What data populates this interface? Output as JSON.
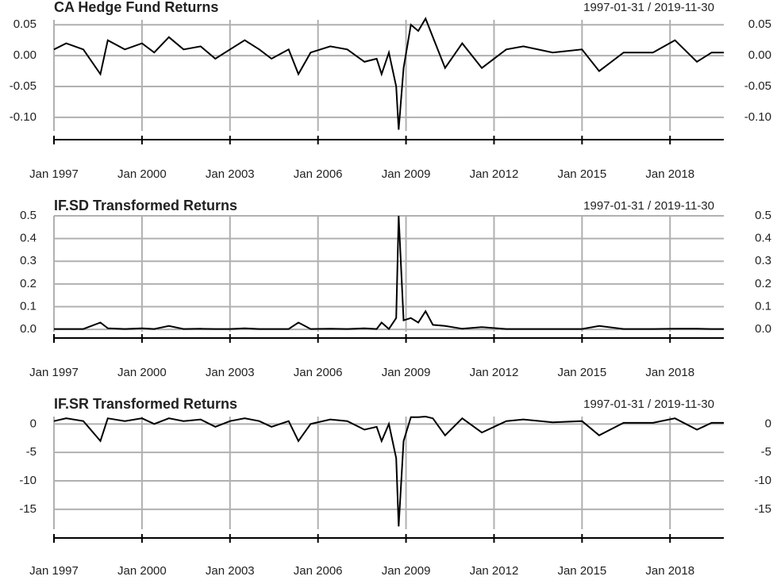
{
  "chart_data": [
    {
      "type": "line",
      "title": "CA Hedge Fund Returns",
      "period": "1997-01-31 / 2019-11-30",
      "x": [
        "1997-01",
        "1997-06",
        "1998-01",
        "1998-08",
        "1998-11",
        "1999-06",
        "2000-01",
        "2000-06",
        "2000-12",
        "2001-06",
        "2002-01",
        "2002-07",
        "2003-01",
        "2003-07",
        "2004-01",
        "2004-06",
        "2005-01",
        "2005-05",
        "2005-10",
        "2006-06",
        "2007-01",
        "2007-08",
        "2008-01",
        "2008-03",
        "2008-06",
        "2008-09",
        "2008-10",
        "2008-12",
        "2009-03",
        "2009-06",
        "2009-09",
        "2009-12",
        "2010-05",
        "2010-12",
        "2011-08",
        "2012-06",
        "2013-01",
        "2014-01",
        "2015-01",
        "2015-08",
        "2016-06",
        "2017-06",
        "2018-03",
        "2018-12",
        "2019-06",
        "2019-11"
      ],
      "series": [
        {
          "name": "CA Hedge Fund",
          "color": "#000000",
          "values": [
            0.01,
            0.02,
            0.01,
            -0.03,
            0.025,
            0.01,
            0.02,
            0.005,
            0.03,
            0.01,
            0.015,
            -0.005,
            0.01,
            0.025,
            0.01,
            -0.005,
            0.01,
            -0.03,
            0.005,
            0.015,
            0.01,
            -0.01,
            -0.005,
            -0.03,
            0.005,
            -0.05,
            -0.12,
            -0.02,
            0.05,
            0.04,
            0.06,
            0.03,
            -0.02,
            0.02,
            -0.02,
            0.01,
            0.015,
            0.005,
            0.01,
            -0.025,
            0.005,
            0.005,
            0.025,
            -0.01,
            0.005,
            0.005
          ]
        }
      ],
      "xlim": [
        "1997-01",
        "2019-11"
      ],
      "xticks": [
        {
          "value": "1997-01",
          "label": "Jan 1997"
        },
        {
          "value": "2000-01",
          "label": "Jan 2000"
        },
        {
          "value": "2003-01",
          "label": "Jan 2003"
        },
        {
          "value": "2006-01",
          "label": "Jan 2006"
        },
        {
          "value": "2009-01",
          "label": "Jan 2009"
        },
        {
          "value": "2012-01",
          "label": "Jan 2012"
        },
        {
          "value": "2015-01",
          "label": "Jan 2015"
        },
        {
          "value": "2018-01",
          "label": "Jan 2018"
        }
      ],
      "ylim": [
        -0.122,
        0.058
      ],
      "yticks": [
        {
          "value": 0.05,
          "label": "0.05"
        },
        {
          "value": 0,
          "label": "0.00"
        },
        {
          "value": -0.05,
          "label": "-0.05"
        },
        {
          "value": -0.1,
          "label": "-0.10"
        }
      ],
      "grid": true
    },
    {
      "type": "line",
      "title": "IF.SD Transformed Returns",
      "period": "1997-01-31 / 2019-11-30",
      "x": [
        "1997-01",
        "1997-06",
        "1998-01",
        "1998-08",
        "1998-11",
        "1999-06",
        "2000-01",
        "2000-06",
        "2000-12",
        "2001-06",
        "2002-01",
        "2002-07",
        "2003-01",
        "2003-07",
        "2004-01",
        "2004-06",
        "2005-01",
        "2005-05",
        "2005-10",
        "2006-06",
        "2007-01",
        "2007-08",
        "2008-01",
        "2008-03",
        "2008-06",
        "2008-09",
        "2008-10",
        "2008-12",
        "2009-03",
        "2009-06",
        "2009-09",
        "2009-12",
        "2010-05",
        "2010-12",
        "2011-08",
        "2012-06",
        "2013-01",
        "2014-01",
        "2015-01",
        "2015-08",
        "2016-06",
        "2017-06",
        "2018-03",
        "2018-12",
        "2019-06",
        "2019-11"
      ],
      "series": [
        {
          "name": "IF.SD",
          "color": "#000000",
          "values": [
            0.002,
            0.002,
            0.002,
            0.03,
            0.005,
            0.002,
            0.005,
            0.002,
            0.015,
            0.002,
            0.003,
            0.002,
            0.002,
            0.005,
            0.002,
            0.002,
            0.002,
            0.03,
            0.002,
            0.003,
            0.002,
            0.005,
            0.002,
            0.03,
            0.002,
            0.05,
            0.5,
            0.04,
            0.05,
            0.03,
            0.08,
            0.02,
            0.015,
            0.003,
            0.01,
            0.002,
            0.002,
            0.002,
            0.002,
            0.015,
            0.002,
            0.002,
            0.003,
            0.003,
            0.002,
            0.002
          ]
        }
      ],
      "xlim": [
        "1997-01",
        "2019-11"
      ],
      "xticks": [
        {
          "value": "1997-01",
          "label": "Jan 1997"
        },
        {
          "value": "2000-01",
          "label": "Jan 2000"
        },
        {
          "value": "2003-01",
          "label": "Jan 2003"
        },
        {
          "value": "2006-01",
          "label": "Jan 2006"
        },
        {
          "value": "2009-01",
          "label": "Jan 2009"
        },
        {
          "value": "2012-01",
          "label": "Jan 2012"
        },
        {
          "value": "2015-01",
          "label": "Jan 2015"
        },
        {
          "value": "2018-01",
          "label": "Jan 2018"
        }
      ],
      "ylim": [
        -0.01,
        0.5
      ],
      "yticks": [
        0.5,
        0.4,
        0.3,
        0.2,
        0.1,
        {
          "value": 0,
          "label": "0.0"
        }
      ],
      "grid": true
    },
    {
      "type": "line",
      "title": "IF.SR Transformed Returns",
      "period": "1997-01-31 / 2019-11-30",
      "x": [
        "1997-01",
        "1997-06",
        "1998-01",
        "1998-08",
        "1998-11",
        "1999-06",
        "2000-01",
        "2000-06",
        "2000-12",
        "2001-06",
        "2002-01",
        "2002-07",
        "2003-01",
        "2003-07",
        "2004-01",
        "2004-06",
        "2005-01",
        "2005-05",
        "2005-10",
        "2006-06",
        "2007-01",
        "2007-08",
        "2008-01",
        "2008-03",
        "2008-06",
        "2008-09",
        "2008-10",
        "2008-12",
        "2009-03",
        "2009-06",
        "2009-09",
        "2009-12",
        "2010-05",
        "2010-12",
        "2011-08",
        "2012-06",
        "2013-01",
        "2014-01",
        "2015-01",
        "2015-08",
        "2016-06",
        "2017-06",
        "2018-03",
        "2018-12",
        "2019-06",
        "2019-11"
      ],
      "series": [
        {
          "name": "IF.SR",
          "color": "#000000",
          "values": [
            0.5,
            1,
            0.5,
            -3,
            1,
            0.5,
            1,
            0,
            1,
            0.5,
            0.8,
            -0.5,
            0.5,
            1,
            0.5,
            -0.5,
            0.5,
            -3,
            0,
            0.8,
            0.5,
            -1,
            -0.5,
            -3,
            0,
            -6,
            -18,
            -3,
            1.2,
            1.2,
            1.3,
            1,
            -2,
            1,
            -1.5,
            0.5,
            0.8,
            0.3,
            0.5,
            -2,
            0.2,
            0.2,
            1,
            -1,
            0.2,
            0.2
          ]
        }
      ],
      "xlim": [
        "1997-01",
        "2019-11"
      ],
      "xticks": [
        {
          "value": "1997-01",
          "label": "Jan 1997"
        },
        {
          "value": "2000-01",
          "label": "Jan 2000"
        },
        {
          "value": "2003-01",
          "label": "Jan 2003"
        },
        {
          "value": "2006-01",
          "label": "Jan 2006"
        },
        {
          "value": "2009-01",
          "label": "Jan 2009"
        },
        {
          "value": "2012-01",
          "label": "Jan 2012"
        },
        {
          "value": "2015-01",
          "label": "Jan 2015"
        },
        {
          "value": "2018-01",
          "label": "Jan 2018"
        }
      ],
      "ylim": [
        -18.5,
        1.3
      ],
      "yticks": [
        0,
        -5,
        -10,
        -15
      ],
      "grid": true
    }
  ]
}
